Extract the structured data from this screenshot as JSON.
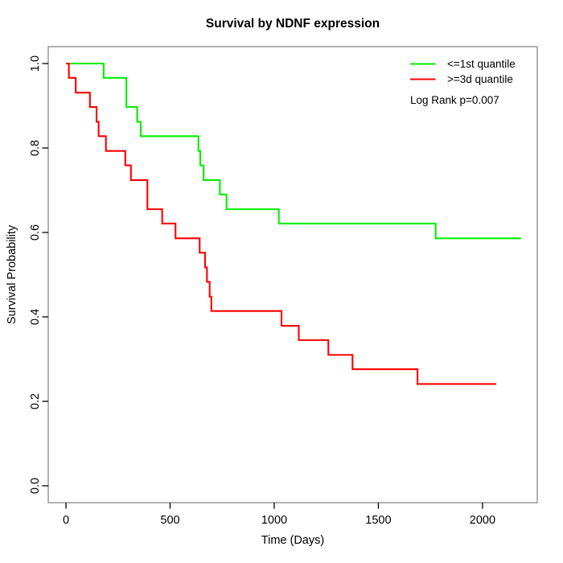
{
  "chart_data": {
    "type": "line",
    "subtype": "kaplan-meier-step",
    "title": "Survival by NDNF expression",
    "xlabel": "Time (Days)",
    "ylabel": "Survival Probability",
    "xlim": [
      -85,
      2263
    ],
    "ylim": [
      -0.04,
      1.04
    ],
    "grid": false,
    "x_ticks": {
      "values": [
        0,
        500,
        1000,
        1500,
        2000
      ],
      "labels": [
        "0",
        "500",
        "1000",
        "1500",
        "2000"
      ]
    },
    "y_ticks": {
      "values": [
        0.0,
        0.2,
        0.4,
        0.6,
        0.8,
        1.0
      ],
      "labels": [
        "0.0",
        "0.2",
        "0.4",
        "0.6",
        "0.8",
        "1.0"
      ]
    },
    "legend_position": "top-right",
    "annotation": "Log Rank p=0.007",
    "axis_color": "#888888",
    "tick_color": "#000000",
    "series": [
      {
        "name": "<=1st quantile",
        "color": "#00ee00",
        "points": [
          [
            0,
            1.0
          ],
          [
            181,
            0.966
          ],
          [
            290,
            0.897
          ],
          [
            342,
            0.862
          ],
          [
            359,
            0.828
          ],
          [
            636,
            0.793
          ],
          [
            645,
            0.759
          ],
          [
            661,
            0.724
          ],
          [
            739,
            0.69
          ],
          [
            771,
            0.655
          ],
          [
            1022,
            0.621
          ],
          [
            1775,
            0.586
          ],
          [
            2185,
            0.586
          ]
        ]
      },
      {
        "name": ">=3d quantile",
        "color": "#ff0000",
        "points": [
          [
            0,
            1.0
          ],
          [
            14,
            0.966
          ],
          [
            47,
            0.931
          ],
          [
            115,
            0.897
          ],
          [
            147,
            0.862
          ],
          [
            157,
            0.828
          ],
          [
            192,
            0.793
          ],
          [
            285,
            0.759
          ],
          [
            312,
            0.724
          ],
          [
            391,
            0.655
          ],
          [
            462,
            0.621
          ],
          [
            526,
            0.586
          ],
          [
            642,
            0.552
          ],
          [
            668,
            0.517
          ],
          [
            677,
            0.483
          ],
          [
            690,
            0.448
          ],
          [
            698,
            0.414
          ],
          [
            1035,
            0.379
          ],
          [
            1118,
            0.345
          ],
          [
            1260,
            0.31
          ],
          [
            1376,
            0.276
          ],
          [
            1688,
            0.241
          ],
          [
            2066,
            0.241
          ]
        ]
      }
    ]
  }
}
